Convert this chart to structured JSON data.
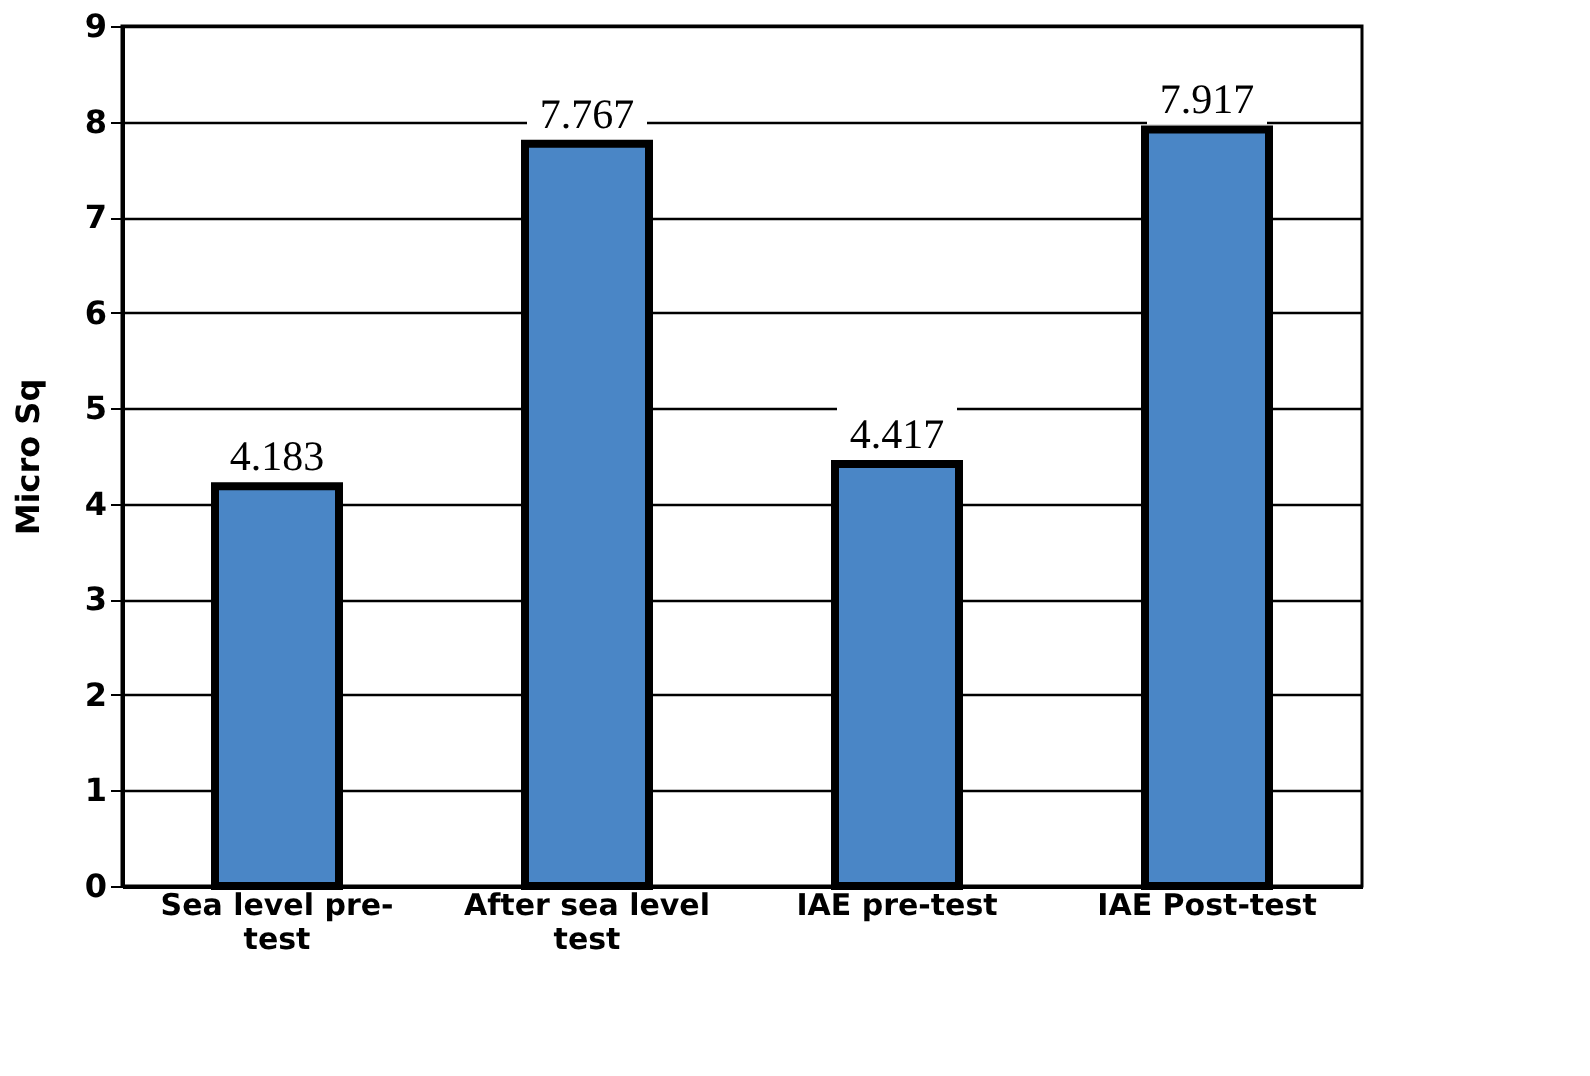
{
  "chart_data": {
    "type": "bar",
    "ylabel": "Micro Sq",
    "categories": [
      "Sea level pre-test",
      "After sea level test",
      "IAE pre-test",
      "IAE Post-test"
    ],
    "values": [
      4.183,
      7.767,
      4.417,
      7.917
    ],
    "color": "#4a86c6",
    "ylim": [
      0,
      9
    ],
    "yticks": [
      0,
      1,
      2,
      3,
      4,
      5,
      6,
      7,
      8,
      9
    ],
    "grid": "y",
    "data_labels": true
  }
}
